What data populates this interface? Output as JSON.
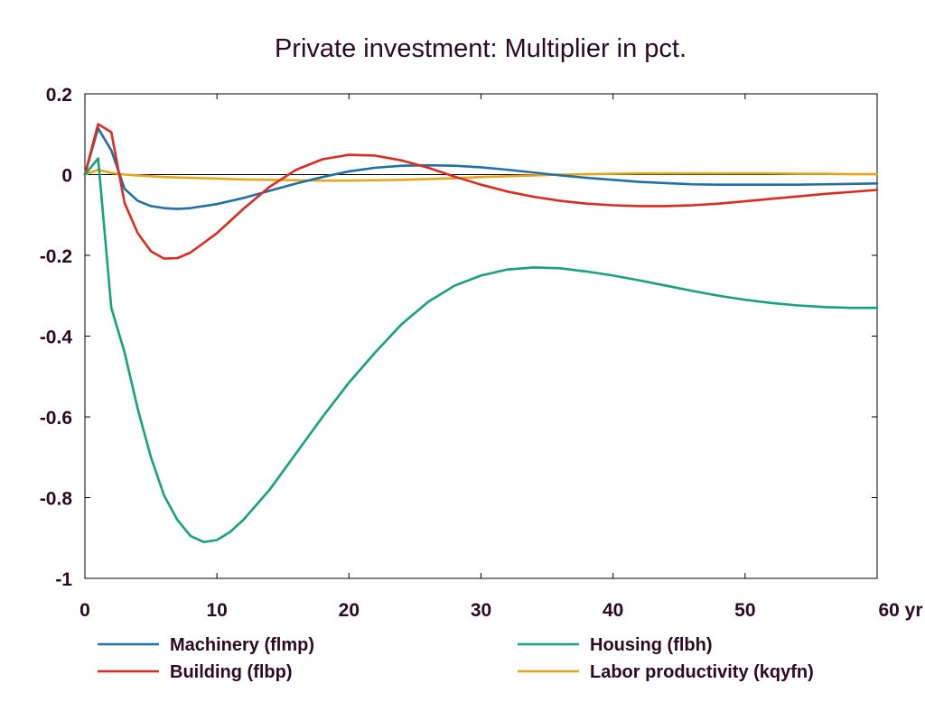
{
  "chart_data": {
    "type": "line",
    "title": "Private investment: Multiplier in pct.",
    "x_unit_label": "yr",
    "xlim": [
      0,
      60
    ],
    "ylim": [
      -1,
      0.2
    ],
    "x_ticks": [
      0,
      10,
      20,
      30,
      40,
      50,
      60
    ],
    "y_ticks": [
      0.2,
      0,
      -0.2,
      -0.4,
      -0.6,
      -0.8,
      -1
    ],
    "x_tick_labels": [
      "0",
      "10",
      "20",
      "30",
      "40",
      "50",
      "60 yr"
    ],
    "y_tick_labels": [
      "0.2",
      "0",
      "-0.2",
      "-0.4",
      "-0.6",
      "-0.8",
      "-1"
    ],
    "legend_position": "bottom",
    "series": [
      {
        "name": "Machinery (flmp)",
        "color": "#1f6fa8",
        "x": [
          0,
          1,
          2,
          3,
          4,
          5,
          6,
          7,
          8,
          10,
          12,
          14,
          16,
          18,
          20,
          22,
          24,
          26,
          28,
          30,
          32,
          34,
          36,
          38,
          40,
          42,
          44,
          46,
          48,
          50,
          52,
          54,
          56,
          58,
          60
        ],
        "y": [
          0,
          0.115,
          0.06,
          -0.035,
          -0.065,
          -0.078,
          -0.083,
          -0.085,
          -0.083,
          -0.073,
          -0.058,
          -0.04,
          -0.022,
          -0.006,
          0.008,
          0.017,
          0.022,
          0.023,
          0.022,
          0.018,
          0.012,
          0.005,
          -0.002,
          -0.008,
          -0.013,
          -0.018,
          -0.021,
          -0.024,
          -0.025,
          -0.025,
          -0.025,
          -0.025,
          -0.024,
          -0.023,
          -0.022
        ]
      },
      {
        "name": "Building (flbp)",
        "color": "#e02a1f",
        "x": [
          0,
          1,
          2,
          3,
          4,
          5,
          6,
          7,
          8,
          10,
          12,
          14,
          16,
          18,
          20,
          22,
          24,
          26,
          28,
          30,
          32,
          34,
          36,
          38,
          40,
          42,
          44,
          46,
          48,
          50,
          52,
          54,
          56,
          58,
          60
        ],
        "y": [
          0,
          0.125,
          0.105,
          -0.07,
          -0.145,
          -0.19,
          -0.208,
          -0.207,
          -0.193,
          -0.145,
          -0.085,
          -0.03,
          0.012,
          0.038,
          0.049,
          0.047,
          0.035,
          0.017,
          -0.005,
          -0.025,
          -0.042,
          -0.055,
          -0.065,
          -0.072,
          -0.076,
          -0.078,
          -0.078,
          -0.076,
          -0.072,
          -0.066,
          -0.06,
          -0.054,
          -0.048,
          -0.043,
          -0.038
        ]
      },
      {
        "name": "Housing (flbh)",
        "color": "#14a37a",
        "x": [
          0,
          1,
          2,
          3,
          4,
          5,
          6,
          7,
          8,
          9,
          10,
          11,
          12,
          14,
          16,
          18,
          20,
          22,
          24,
          26,
          28,
          30,
          32,
          34,
          36,
          38,
          40,
          42,
          44,
          46,
          48,
          50,
          52,
          54,
          56,
          58,
          60
        ],
        "y": [
          0,
          0.04,
          -0.33,
          -0.44,
          -0.58,
          -0.7,
          -0.795,
          -0.855,
          -0.895,
          -0.91,
          -0.905,
          -0.885,
          -0.855,
          -0.78,
          -0.69,
          -0.6,
          -0.515,
          -0.44,
          -0.37,
          -0.315,
          -0.275,
          -0.25,
          -0.235,
          -0.23,
          -0.232,
          -0.24,
          -0.25,
          -0.262,
          -0.275,
          -0.288,
          -0.3,
          -0.31,
          -0.318,
          -0.324,
          -0.328,
          -0.33,
          -0.33
        ]
      },
      {
        "name": "Labor productivity (kqyfn)",
        "color": "#e8a51a",
        "x": [
          0,
          1,
          2,
          3,
          4,
          6,
          8,
          10,
          12,
          14,
          16,
          18,
          20,
          22,
          24,
          26,
          28,
          30,
          32,
          34,
          36,
          38,
          40,
          42,
          44,
          46,
          48,
          50,
          52,
          54,
          56,
          58,
          60
        ],
        "y": [
          0,
          0.012,
          0.004,
          0.0,
          -0.002,
          -0.006,
          -0.008,
          -0.01,
          -0.012,
          -0.013,
          -0.014,
          -0.015,
          -0.015,
          -0.014,
          -0.013,
          -0.011,
          -0.009,
          -0.006,
          -0.004,
          -0.002,
          0.0,
          0.001,
          0.002,
          0.003,
          0.003,
          0.003,
          0.003,
          0.003,
          0.003,
          0.002,
          0.002,
          0.001,
          0.001
        ]
      }
    ]
  }
}
